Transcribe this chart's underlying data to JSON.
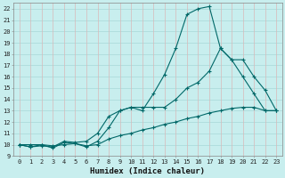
{
  "xlabel": "Humidex (Indice chaleur)",
  "bg_color": "#c8eeee",
  "line_color": "#006868",
  "grid_color_h": "#a8d8d8",
  "grid_color_v": "#d8b8b8",
  "xlim": [
    -0.5,
    23.5
  ],
  "ylim": [
    9,
    22.5
  ],
  "xticks": [
    0,
    1,
    2,
    3,
    4,
    5,
    6,
    7,
    8,
    9,
    10,
    11,
    12,
    13,
    14,
    15,
    16,
    17,
    18,
    19,
    20,
    21,
    22,
    23
  ],
  "yticks": [
    9,
    10,
    11,
    12,
    13,
    14,
    15,
    16,
    17,
    18,
    19,
    20,
    21,
    22
  ],
  "series1_x": [
    0,
    1,
    2,
    3,
    4,
    5,
    6,
    7,
    8,
    9,
    10,
    11,
    12,
    13,
    14,
    15,
    16,
    17,
    18,
    19,
    20,
    21,
    22,
    23
  ],
  "series1_y": [
    10,
    9.8,
    10,
    9.7,
    10.2,
    10.1,
    9.8,
    10.3,
    11.5,
    13,
    13.3,
    13,
    14.5,
    16.2,
    18.5,
    21.5,
    22.0,
    22.2,
    18.5,
    17.5,
    16.0,
    14.5,
    13.0,
    13.0
  ],
  "series2_x": [
    0,
    1,
    2,
    3,
    4,
    5,
    6,
    7,
    8,
    9,
    10,
    11,
    12,
    13,
    14,
    15,
    16,
    17,
    18,
    19,
    20,
    21,
    22,
    23
  ],
  "series2_y": [
    10,
    9.8,
    9.9,
    9.8,
    10.3,
    10.2,
    10.3,
    11.0,
    12.5,
    13.0,
    13.3,
    13.3,
    13.3,
    13.3,
    14.0,
    15.0,
    15.5,
    16.5,
    18.5,
    17.5,
    17.5,
    16.0,
    14.8,
    13.0
  ],
  "series3_x": [
    0,
    1,
    2,
    3,
    4,
    5,
    6,
    7,
    8,
    9,
    10,
    11,
    12,
    13,
    14,
    15,
    16,
    17,
    18,
    19,
    20,
    21,
    22,
    23
  ],
  "series3_y": [
    10,
    10.0,
    10.0,
    9.9,
    10.0,
    10.1,
    9.9,
    10.0,
    10.5,
    10.8,
    11.0,
    11.3,
    11.5,
    11.8,
    12.0,
    12.3,
    12.5,
    12.8,
    13.0,
    13.2,
    13.3,
    13.3,
    13.0,
    13.0
  ]
}
